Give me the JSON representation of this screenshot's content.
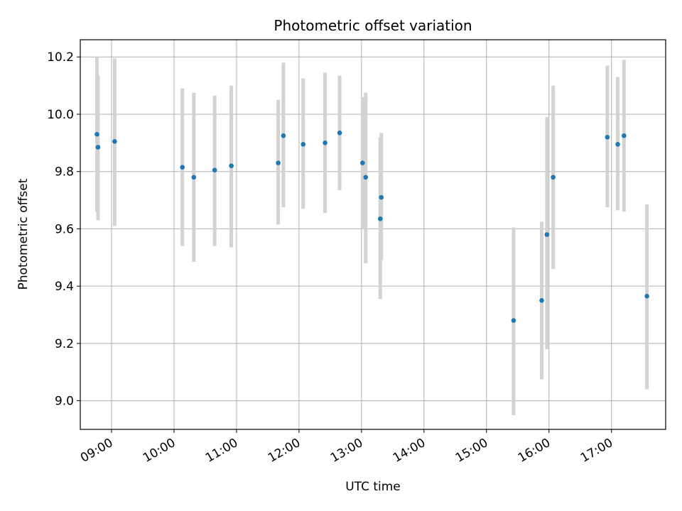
{
  "chart_data": {
    "type": "scatter",
    "title": "Photometric offset variation",
    "xlabel": "UTC time",
    "ylabel": "Photometric offset",
    "xlim": [
      "08:30",
      "17:52"
    ],
    "ylim": [
      8.9,
      10.26
    ],
    "x_ticks": [
      "09:00",
      "10:00",
      "11:00",
      "12:00",
      "13:00",
      "14:00",
      "15:00",
      "16:00",
      "17:00"
    ],
    "y_ticks": [
      9.0,
      9.2,
      9.4,
      9.6,
      9.8,
      10.0,
      10.2
    ],
    "y_tick_labels": [
      "9.0",
      "9.2",
      "9.4",
      "9.6",
      "9.8",
      "10.0",
      "10.2"
    ],
    "grid": true,
    "colors": {
      "point": "#1f77b4",
      "errorbar": "#d3d3d3",
      "grid": "#b0b0b0"
    },
    "points": [
      {
        "x": "08:46",
        "y": 9.93,
        "ylow": 9.66,
        "yhigh": 10.2
      },
      {
        "x": "08:47",
        "y": 9.885,
        "ylow": 9.63,
        "yhigh": 10.135
      },
      {
        "x": "09:03",
        "y": 9.905,
        "ylow": 9.61,
        "yhigh": 10.195
      },
      {
        "x": "10:08",
        "y": 9.815,
        "ylow": 9.54,
        "yhigh": 10.09
      },
      {
        "x": "10:19",
        "y": 9.78,
        "ylow": 9.485,
        "yhigh": 10.075
      },
      {
        "x": "10:39",
        "y": 9.805,
        "ylow": 9.54,
        "yhigh": 10.065
      },
      {
        "x": "10:55",
        "y": 9.82,
        "ylow": 9.535,
        "yhigh": 10.1
      },
      {
        "x": "11:40",
        "y": 9.83,
        "ylow": 9.615,
        "yhigh": 10.05
      },
      {
        "x": "11:45",
        "y": 9.925,
        "ylow": 9.675,
        "yhigh": 10.18
      },
      {
        "x": "12:04",
        "y": 9.895,
        "ylow": 9.67,
        "yhigh": 10.125
      },
      {
        "x": "12:25",
        "y": 9.9,
        "ylow": 9.655,
        "yhigh": 10.145
      },
      {
        "x": "12:39",
        "y": 9.935,
        "ylow": 9.735,
        "yhigh": 10.135
      },
      {
        "x": "13:01",
        "y": 9.83,
        "ylow": 9.6,
        "yhigh": 10.06
      },
      {
        "x": "13:04",
        "y": 9.78,
        "ylow": 9.48,
        "yhigh": 10.075
      },
      {
        "x": "13:18",
        "y": 9.635,
        "ylow": 9.355,
        "yhigh": 9.92
      },
      {
        "x": "13:19",
        "y": 9.71,
        "ylow": 9.49,
        "yhigh": 9.935
      },
      {
        "x": "15:26",
        "y": 9.28,
        "ylow": 8.95,
        "yhigh": 9.605
      },
      {
        "x": "15:53",
        "y": 9.35,
        "ylow": 9.075,
        "yhigh": 9.625
      },
      {
        "x": "15:58",
        "y": 9.58,
        "ylow": 9.18,
        "yhigh": 9.99
      },
      {
        "x": "16:04",
        "y": 9.78,
        "ylow": 9.46,
        "yhigh": 10.1
      },
      {
        "x": "16:56",
        "y": 9.92,
        "ylow": 9.675,
        "yhigh": 10.17
      },
      {
        "x": "17:06",
        "y": 9.895,
        "ylow": 9.665,
        "yhigh": 10.13
      },
      {
        "x": "17:12",
        "y": 9.925,
        "ylow": 9.66,
        "yhigh": 10.19
      },
      {
        "x": "17:34",
        "y": 9.365,
        "ylow": 9.04,
        "yhigh": 9.685
      }
    ]
  }
}
